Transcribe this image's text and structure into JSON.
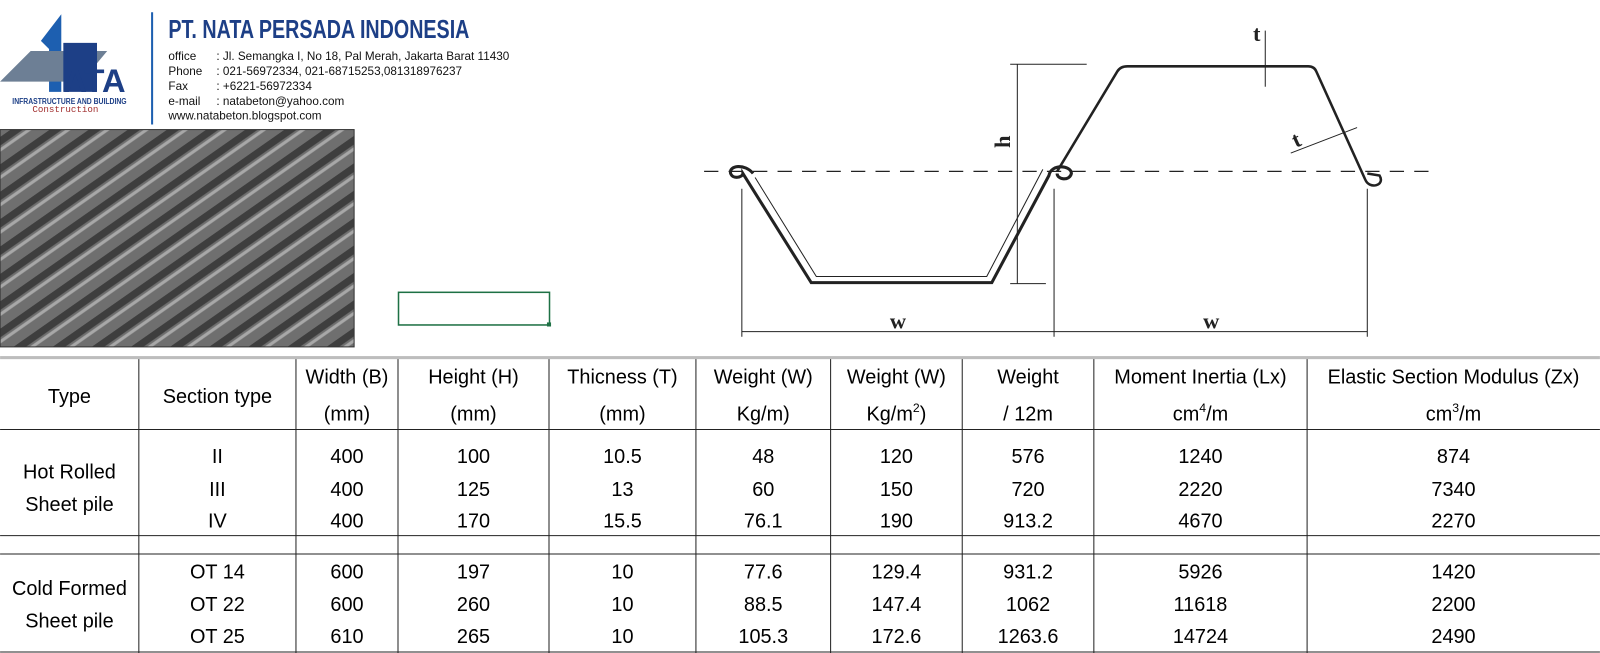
{
  "header": {
    "logo_text": "ATA",
    "logo_subtitle": "INFRASTRUCTURE AND BUILDING",
    "logo_tagline": "Construction",
    "company": "PT. NATA PERSADA INDONESIA",
    "contacts": [
      {
        "label": "office",
        "value": ": Jl. Semangka I, No 18, Pal Merah, Jakarta Barat 11430"
      },
      {
        "label": "Phone",
        "value": ": 021-56972334, 021-68715253,081318976237"
      },
      {
        "label": "Fax",
        "value": ": +6221-56972334"
      },
      {
        "label": "e-mail",
        "value": ": natabeton@yahoo.com"
      }
    ],
    "website": "www.natabeton.blogspot.com"
  },
  "diagram": {
    "labels": [
      "t",
      "h",
      "t",
      "w",
      "w"
    ]
  },
  "table": {
    "columns": [
      {
        "line1": "Type"
      },
      {
        "line1": "Section type"
      },
      {
        "line1": "Width (B)",
        "line2": "(mm)"
      },
      {
        "line1": "Height (H)",
        "line2": "(mm)"
      },
      {
        "line1": "Thicness (T)",
        "line2": "(mm)"
      },
      {
        "line1": "Weight (W)",
        "line2": "Kg/m)"
      },
      {
        "line1": "Weight (W)",
        "line2": "Kg/m",
        "line2_sup": "2",
        "line2_tail": ")"
      },
      {
        "line1": "Weight",
        "line2": "/ 12m"
      },
      {
        "line1": "Moment Inertia (Lx)",
        "line2": "cm",
        "line2_sup": "4",
        "line2_tail": "/m"
      },
      {
        "line1": "Elastic Section Modulus (Zx)",
        "line2": "cm",
        "line2_sup": "3",
        "line2_tail": "/m"
      }
    ],
    "groups": [
      {
        "type_lines": [
          "Hot Rolled",
          "Sheet pile"
        ],
        "rows": [
          [
            "II",
            "400",
            "100",
            "10.5",
            "48",
            "120",
            "576",
            "1240",
            "874"
          ],
          [
            "III",
            "400",
            "125",
            "13",
            "60",
            "150",
            "720",
            "2220",
            "7340"
          ],
          [
            "IV",
            "400",
            "170",
            "15.5",
            "76.1",
            "190",
            "913.2",
            "4670",
            "2270"
          ]
        ]
      },
      {
        "type_lines": [
          "Cold Formed",
          "Sheet pile"
        ],
        "rows": [
          [
            "OT 14",
            "600",
            "197",
            "10",
            "77.6",
            "129.4",
            "931.2",
            "5926",
            "1420"
          ],
          [
            "OT 22",
            "600",
            "260",
            "10",
            "88.5",
            "147.4",
            "1062",
            "11618",
            "2200"
          ],
          [
            "OT 25",
            "610",
            "265",
            "10",
            "105.3",
            "172.6",
            "1263.6",
            "14724",
            "2490"
          ]
        ]
      }
    ]
  }
}
